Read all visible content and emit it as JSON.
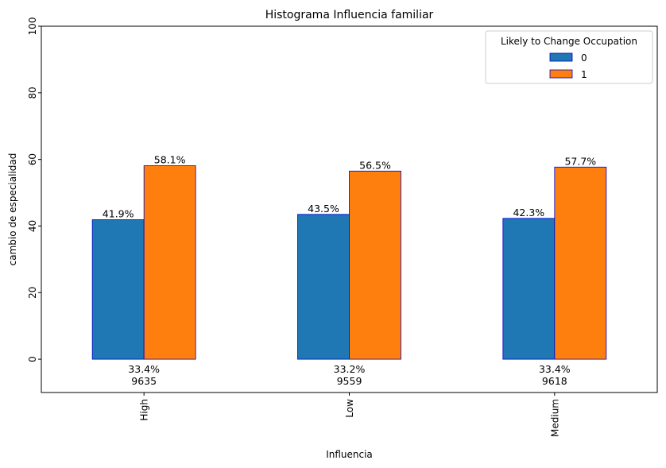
{
  "chart_data": {
    "type": "bar",
    "title": "Histograma Influencia familiar",
    "xlabel": "Influencia",
    "ylabel": "cambio de especialidad",
    "categories": [
      "High",
      "Low",
      "Medium"
    ],
    "series": [
      {
        "name": "0",
        "values": [
          41.9,
          43.5,
          42.3
        ],
        "labels": [
          "41.9%",
          "43.5%",
          "42.3%"
        ],
        "color": "#1f77b4"
      },
      {
        "name": "1",
        "values": [
          58.1,
          56.5,
          57.7
        ],
        "labels": [
          "58.1%",
          "56.5%",
          "57.7%"
        ],
        "color": "#ff7f0e"
      }
    ],
    "category_share_labels": [
      "33.4%",
      "33.2%",
      "33.4%"
    ],
    "category_count_labels": [
      "9635",
      "9559",
      "9618"
    ],
    "ylim": [
      -10,
      100
    ],
    "yticks": [
      0,
      20,
      40,
      60,
      80,
      100
    ],
    "legend": {
      "title": "Likely to Change Occupation",
      "position": "top-right"
    },
    "bar_edge_color": "#0000cd",
    "grid": false
  }
}
